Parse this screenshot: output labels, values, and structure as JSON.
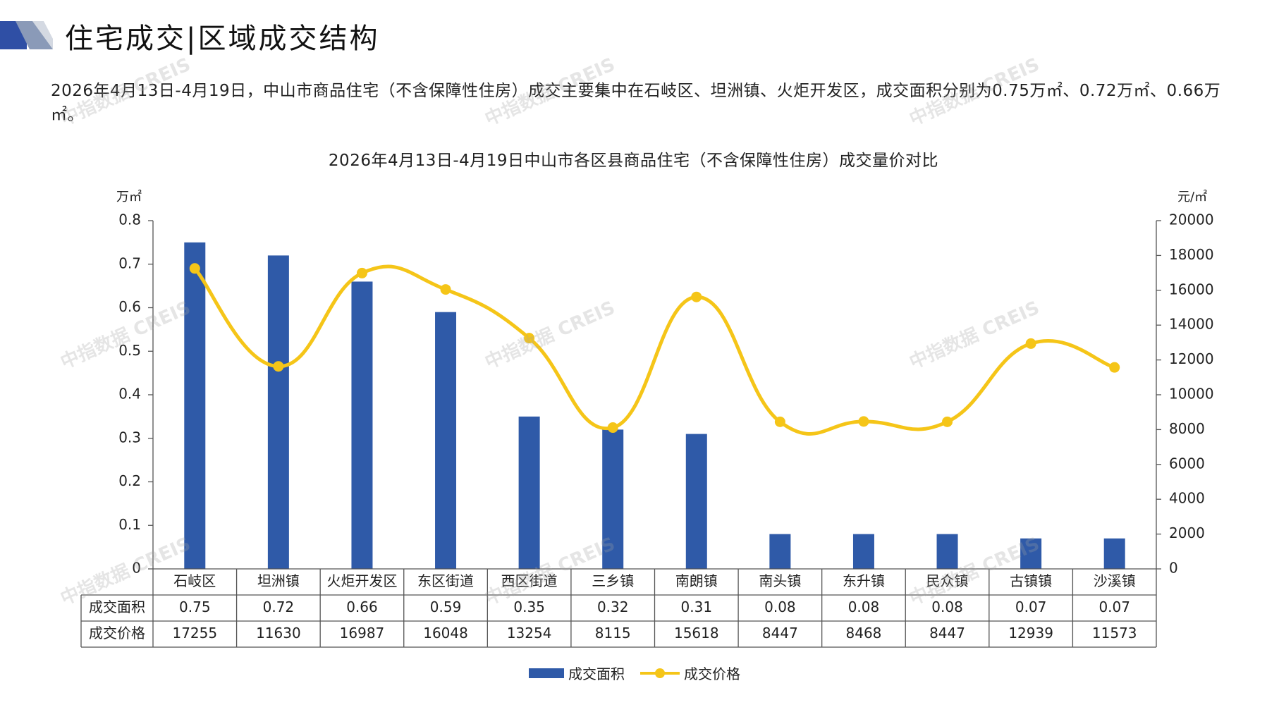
{
  "page": {
    "title": "住宅成交|区域成交结构",
    "summary": "2026年4月13日-4月19日，中山市商品住宅（不含保障性住房）成交主要集中在石岐区、坦洲镇、火炬开发区，成交面积分别为0.75万㎡、0.72万㎡、0.66万㎡。",
    "watermark": "中指数据 CREIS"
  },
  "chart_data": {
    "type": "bar",
    "title": "2026年4月13日-4月19日中山市各区县商品住宅（不含保障性住房）成交量价对比",
    "ylabel_left": "万㎡",
    "ylabel_right": "元/㎡",
    "categories": [
      "石岐区",
      "坦洲镇",
      "火炬开发区",
      "东区街道",
      "西区街道",
      "三乡镇",
      "南朗镇",
      "南头镇",
      "东升镇",
      "民众镇",
      "古镇镇",
      "沙溪镇"
    ],
    "series": [
      {
        "name": "成交面积",
        "type": "bar",
        "axis": "left",
        "color": "#2F5AA8",
        "values": [
          0.75,
          0.72,
          0.66,
          0.59,
          0.35,
          0.32,
          0.31,
          0.08,
          0.08,
          0.08,
          0.07,
          0.07
        ]
      },
      {
        "name": "成交价格",
        "type": "line",
        "axis": "right",
        "color": "#F5C518",
        "values": [
          17255,
          11630,
          16987,
          16048,
          13254,
          8115,
          15618,
          8447,
          8468,
          8447,
          12939,
          11573
        ]
      }
    ],
    "table_rows": [
      {
        "label": "成交面积",
        "cells": [
          "0.75",
          "0.72",
          "0.66",
          "0.59",
          "0.35",
          "0.32",
          "0.31",
          "0.08",
          "0.08",
          "0.08",
          "0.07",
          "0.07"
        ]
      },
      {
        "label": "成交价格",
        "cells": [
          "17255",
          "11630",
          "16987",
          "16048",
          "13254",
          "8115",
          "15618",
          "8447",
          "8468",
          "8447",
          "12939",
          "11573"
        ]
      }
    ],
    "ylim_left": [
      0,
      0.8
    ],
    "yticks_left": [
      "0",
      "0.1",
      "0.2",
      "0.3",
      "0.4",
      "0.5",
      "0.6",
      "0.7",
      "0.8"
    ],
    "ylim_right": [
      0,
      20000
    ],
    "yticks_right": [
      "0",
      "2000",
      "4000",
      "6000",
      "8000",
      "10000",
      "12000",
      "14000",
      "16000",
      "18000",
      "20000"
    ],
    "grid": false,
    "legend": "bottom"
  }
}
